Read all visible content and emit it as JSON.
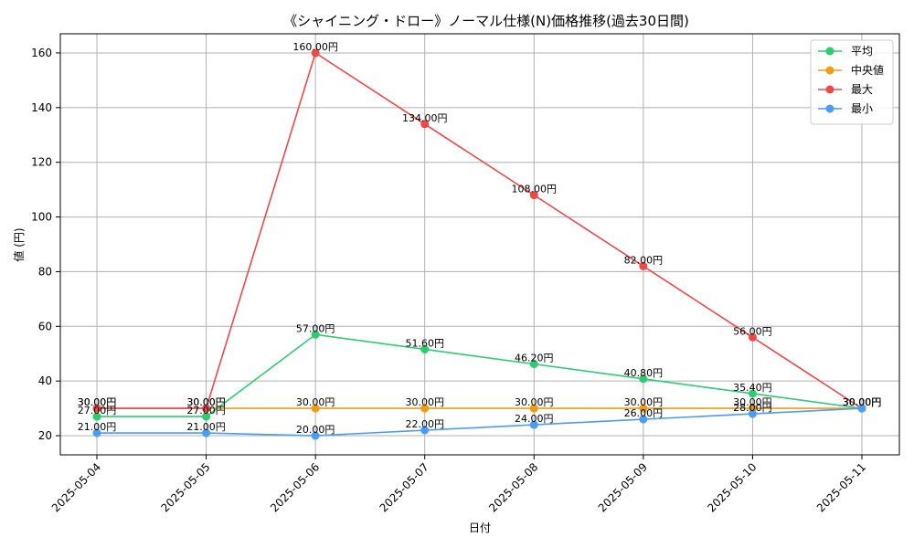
{
  "chart_data": {
    "type": "line",
    "title": "《シャイニング・ドロー》ノーマル仕様(N)価格推移(過去30日間)",
    "xlabel": "日付",
    "ylabel": "値 (円)",
    "categories": [
      "2025-05-04",
      "2025-05-05",
      "2025-05-06",
      "2025-05-07",
      "2025-05-08",
      "2025-05-09",
      "2025-05-10",
      "2025-05-11"
    ],
    "ylim": [
      13,
      167
    ],
    "yticks": [
      20,
      40,
      60,
      80,
      100,
      120,
      140,
      160
    ],
    "grid": true,
    "legend_position": "top-right",
    "value_suffix": "円",
    "series": [
      {
        "name": "平均",
        "color": "#2ecc71",
        "values": [
          27,
          27,
          57,
          51.6,
          46.2,
          40.8,
          35.4,
          30
        ]
      },
      {
        "name": "中央値",
        "color": "#f39c12",
        "values": [
          30,
          30,
          30,
          30,
          30,
          30,
          30,
          30
        ]
      },
      {
        "name": "最大",
        "color": "#f04848",
        "values": [
          30,
          30,
          160,
          134,
          108,
          82,
          56,
          30
        ]
      },
      {
        "name": "最小",
        "color": "#4b9cf5",
        "values": [
          21,
          21,
          20,
          22,
          24,
          26,
          28,
          30
        ]
      }
    ]
  }
}
